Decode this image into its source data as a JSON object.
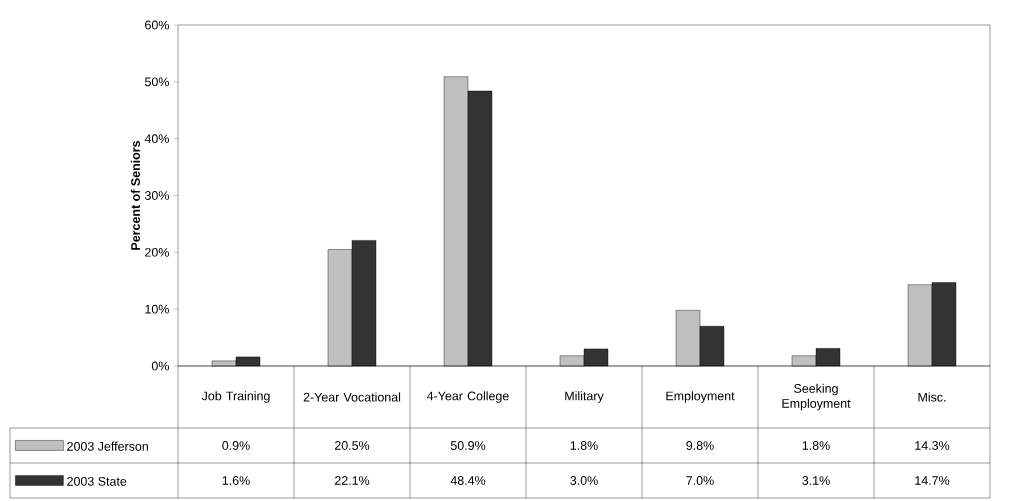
{
  "chart_data": {
    "type": "bar",
    "ylabel": "Percent of Seniors",
    "categories": [
      "Job Training",
      "2-Year Vocational",
      "4-Year College",
      "Military",
      "Employment",
      "Seeking Employment",
      "Misc."
    ],
    "series": [
      {
        "name": "2003 Jefferson",
        "color": "#c0c0c0",
        "values": [
          0.9,
          20.5,
          50.9,
          1.8,
          9.8,
          1.8,
          14.3
        ],
        "value_labels": [
          "0.9%",
          "20.5%",
          "50.9%",
          "1.8%",
          "9.8%",
          "1.8%",
          "14.3%"
        ]
      },
      {
        "name": "2003 State",
        "color": "#333333",
        "values": [
          1.6,
          22.1,
          48.4,
          3.0,
          7.0,
          3.1,
          14.7
        ],
        "value_labels": [
          "1.6%",
          "22.1%",
          "48.4%",
          "3.0%",
          "7.0%",
          "3.1%",
          "14.7%"
        ]
      }
    ],
    "ylim": [
      0,
      60
    ],
    "yticks": [
      {
        "value": 0,
        "label": "0%"
      },
      {
        "value": 10,
        "label": "10%"
      },
      {
        "value": 20,
        "label": "20%"
      },
      {
        "value": 30,
        "label": "30%"
      },
      {
        "value": 40,
        "label": "40%"
      },
      {
        "value": 50,
        "label": "50%"
      },
      {
        "value": 60,
        "label": "60%"
      }
    ],
    "grid": false,
    "legend": "bottom left"
  }
}
